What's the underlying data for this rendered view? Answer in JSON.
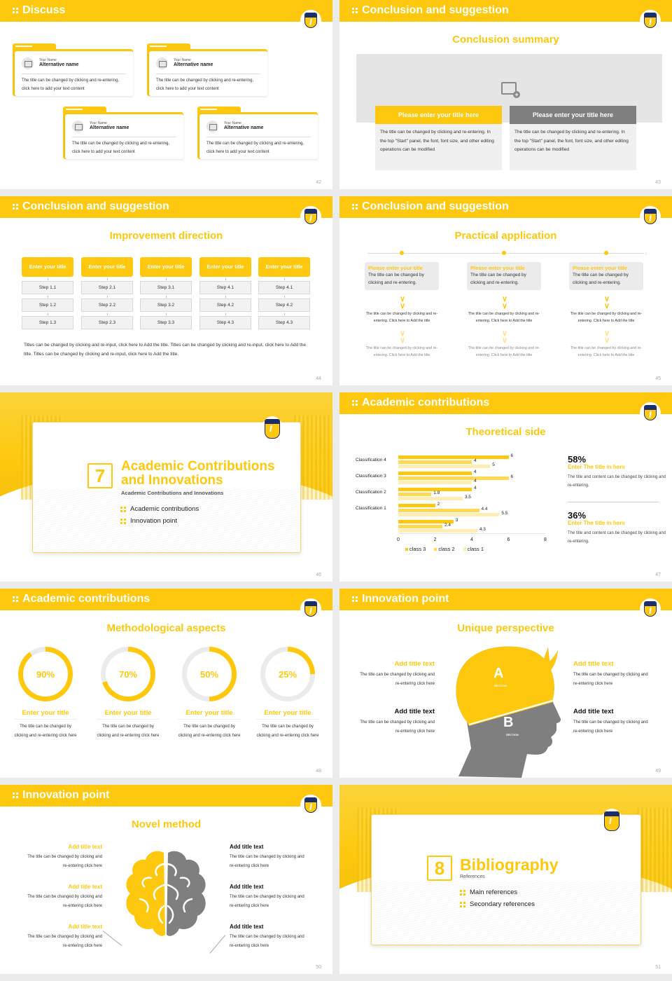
{
  "colors": {
    "accent": "#fec80f",
    "accent_light": "#fde38a",
    "accent_pale": "#fdeeb3",
    "gray": "#7f7f7f",
    "navy": "#1c2d6b",
    "bg": "#ececec"
  },
  "logo_icon": "university-shield-logo",
  "slides": [
    {
      "page": "42",
      "header": "Discuss",
      "cards": [
        {
          "label": "Your Name",
          "name": "Alternative name",
          "text": "The title can be changed by clicking and re-entering, click here to add your text content"
        },
        {
          "label": "Your Name",
          "name": "Alternative name",
          "text": "The title can be changed by clicking and re-entering, click here to add your text content"
        },
        {
          "label": "Your Name",
          "name": "Alternative name",
          "text": "The title can be changed by clicking and re-entering, click here to add your text content"
        },
        {
          "label": "Your Name",
          "name": "Alternative name",
          "text": "The title can be changed by clicking and re-entering, click here to add your text content"
        }
      ]
    },
    {
      "page": "43",
      "header": "Conclusion and suggestion",
      "title": "Conclusion summary",
      "image_placeholder_icon": "image-add-icon",
      "boxes": [
        {
          "title": "Please enter your title here",
          "text": "The title can be changed by clicking and re-entering. In the top \"Start\" panel, the font, font size, and other editing operations can be modified"
        },
        {
          "title": "Please enter your title here",
          "text": "The title can be changed by clicking and re-entering. In the top \"Start\" panel, the font, font size, and other editing operations can be modified"
        }
      ]
    },
    {
      "page": "44",
      "header": "Conclusion and suggestion",
      "title": "Improvement direction",
      "columns": [
        {
          "title": "Enter your title",
          "steps": [
            "Step 1.1",
            "Step 1.2",
            "Step 1.3"
          ]
        },
        {
          "title": "Enter your title",
          "steps": [
            "Step 2.1",
            "Step 2.2",
            "Step 2.3"
          ]
        },
        {
          "title": "Enter your title",
          "steps": [
            "Step 3.1",
            "Step 3.2",
            "Step 3.3"
          ]
        },
        {
          "title": "Enter your title",
          "steps": [
            "Step 4.1",
            "Step 4.2",
            "Step 4.3"
          ]
        },
        {
          "title": "Enter your title",
          "steps": [
            "Step 4.1",
            "Step 4.2",
            "Step 4.3"
          ]
        }
      ],
      "footer": "Titles can be changed by clicking and re-input, click here to Add the title. Titles can be changed by clicking and re-input, click here to Add the title. Titles can be changed by clicking and re-input, click here to Add the title."
    },
    {
      "page": "45",
      "header": "Conclusion and suggestion",
      "title": "Practical application",
      "columns": [
        {
          "title": "Please enter your title",
          "desc": "The title can be changed by clicking and re-entering.",
          "p1": "The title can be changed by clicking and re-entering. Click here to Add the title",
          "p2": "The title can be changed by clicking and re-entering. Click here to Add the title"
        },
        {
          "title": "Please enter your title",
          "desc": "The title can be changed by clicking and re-entering.",
          "p1": "The title can be changed by clicking and re-entering. Click here to Add the title",
          "p2": "The title can be changed by clicking and re-entering. Click here to Add the title"
        },
        {
          "title": "Please enter your title",
          "desc": "The title can be changed by clicking and re-entering.",
          "p1": "The title can be changed by clicking and re-entering. Click here to Add the title",
          "p2": "The title can be changed by clicking and re-entering. Click here to Add the title"
        }
      ]
    },
    {
      "page": "46",
      "number": "7",
      "title_line1": "Academic Contributions",
      "title_line2": "and Innovations",
      "subtitle": "Academic Contributions and Innovations",
      "items": [
        "Academic contributions",
        "Innovation point"
      ]
    },
    {
      "page": "47",
      "header": "Academic contributions",
      "title": "Theoretical side",
      "stats": [
        {
          "pct": "58%",
          "title": "Enter The title in here",
          "text": "The title and content can be changed by clicking and re-entering."
        },
        {
          "pct": "36%",
          "title": "Enter The title in here",
          "text": "The title and content can be changed by clicking and re-entering."
        }
      ]
    },
    {
      "page": "48",
      "header": "Academic contributions",
      "title": "Methodological aspects",
      "rings": [
        {
          "pct": "90%",
          "value": 90,
          "title": "Enter your title",
          "text": "The title can be changed by clicking and re-entering click here"
        },
        {
          "pct": "70%",
          "value": 70,
          "title": "Enter your title",
          "text": "The title can be changed by clicking and re-entering click here"
        },
        {
          "pct": "50%",
          "value": 50,
          "title": "Enter your title",
          "text": "The title can be changed by clicking and re-entering click here"
        },
        {
          "pct": "25%",
          "value": 25,
          "title": "Enter your title",
          "text": "The title can be changed by clicking and re-entering click here"
        }
      ]
    },
    {
      "page": "49",
      "header": "Innovation point",
      "title": "Unique perspective",
      "section_a": "A",
      "section_b": "B",
      "section_label": "SECTION",
      "blocks": [
        {
          "title": "Add title text",
          "text": "The title can be changed by clicking and re-entering click here"
        },
        {
          "title": "Add title text",
          "text": "The title can be changed by clicking and re-entering click here"
        },
        {
          "title": "Add title text",
          "text": "The title can be changed by clicking and re-entering click here"
        },
        {
          "title": "Add title text",
          "text": "The title can be changed by clicking and re-entering click here"
        }
      ]
    },
    {
      "page": "50",
      "header": "Innovation point",
      "title": "Novel method",
      "blocks": [
        {
          "title": "Add title text",
          "text": "The title can be changed by clicking and re-entering click here"
        },
        {
          "title": "Add title text",
          "text": "The title can be changed by clicking and re-entering click here"
        },
        {
          "title": "Add title text",
          "text": "The title can be changed by clicking and re-entering click here"
        },
        {
          "title": "Add title text",
          "text": "The title can be changed by clicking and re-entering click here"
        },
        {
          "title": "Add title text",
          "text": "The title can be changed by clicking and re-entering click here"
        },
        {
          "title": "Add title text",
          "text": "The title can be changed by clicking and re-entering click here"
        }
      ]
    },
    {
      "page": "51",
      "number": "8",
      "title": "Bibliography",
      "subtitle": "References",
      "items": [
        "Main references",
        "Secondary references"
      ]
    }
  ],
  "chart_data": {
    "type": "bar",
    "orientation": "horizontal",
    "title": "Theoretical side",
    "categories": [
      "",
      "Classification 1",
      "Classification 2",
      "Classification 3",
      "Classification 4"
    ],
    "series": [
      {
        "name": "class 3",
        "color": "#fec80f",
        "values": [
          3,
          2,
          4,
          4,
          6
        ]
      },
      {
        "name": "class 2",
        "color": "#fdd955",
        "values": [
          2.4,
          4.4,
          1.8,
          6,
          4
        ]
      },
      {
        "name": "class 1",
        "color": "#fdeeb3",
        "values": [
          4.3,
          5.5,
          3.5,
          4,
          5
        ]
      }
    ],
    "xticks": [
      "0",
      "2",
      "4",
      "6",
      "8"
    ],
    "xlim": [
      0,
      8
    ],
    "grid": false,
    "legend_position": "bottom",
    "xlabel": "",
    "ylabel": ""
  }
}
